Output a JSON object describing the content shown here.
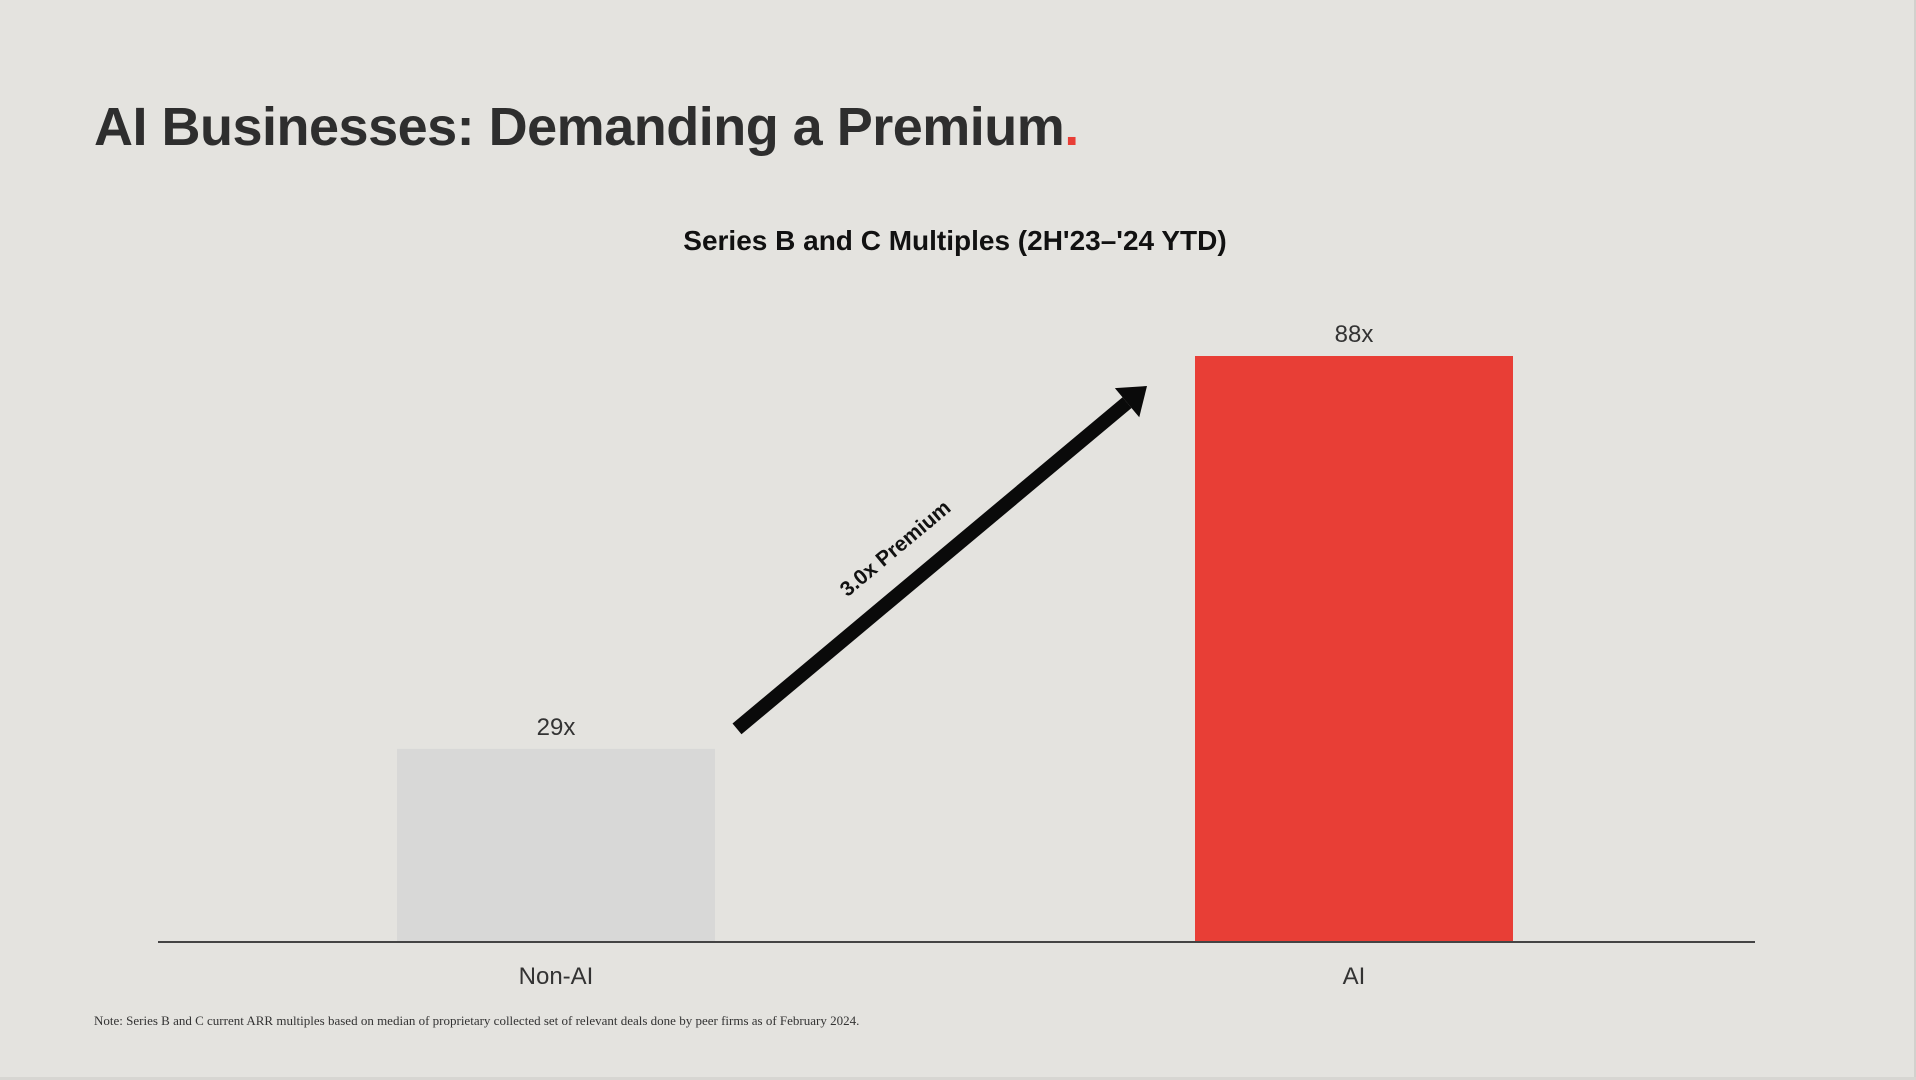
{
  "slide": {
    "title": "AI Businesses: Demanding a Premium",
    "title_dot": ".",
    "footnote": "Note: Series B and C current ARR multiples based on median of proprietary collected set of relevant deals done by peer firms as of February 2024."
  },
  "chart_data": {
    "type": "bar",
    "title": "Series B and C Multiples (2H'23–'24 YTD)",
    "xlabel": "",
    "ylabel": "",
    "categories": [
      "Non-AI",
      "AI"
    ],
    "values": [
      29,
      88
    ],
    "value_labels": [
      "29x",
      "88x"
    ],
    "ylim": [
      0,
      88
    ],
    "grid": false,
    "annotation": "3.0x Premium",
    "colors": {
      "Non-AI": "#d8d8d7",
      "AI": "#e83e36"
    }
  }
}
